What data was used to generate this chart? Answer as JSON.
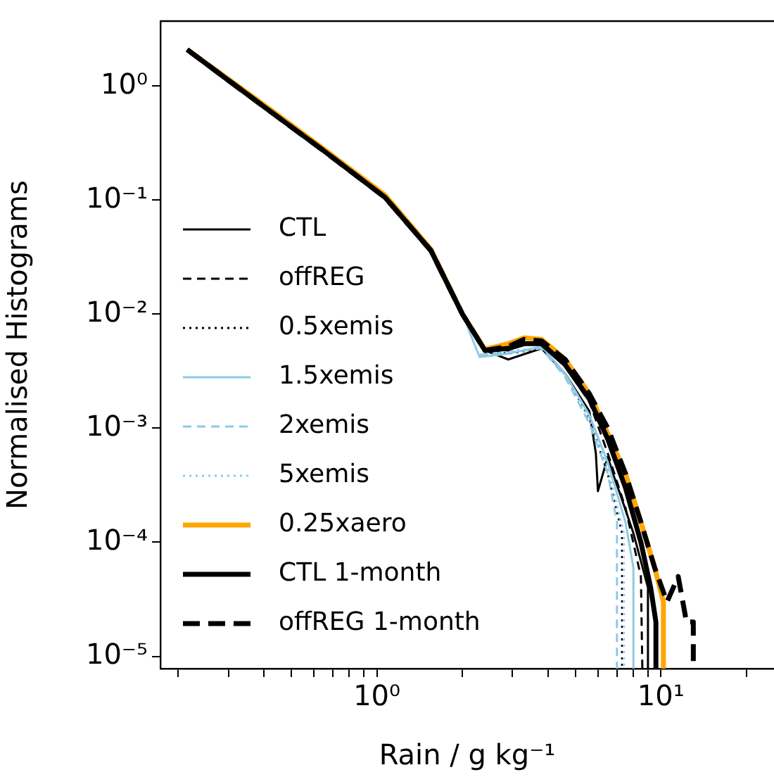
{
  "chart_data": {
    "type": "line",
    "xlabel": "Rain / g kg⁻¹",
    "ylabel": "Normalised Histograms",
    "log": "xy",
    "grid": false,
    "legend": "bottom left",
    "marker": "none",
    "xlim": [
      0.173,
      25
    ],
    "ylim": [
      7.8e-06,
      3.7
    ],
    "xticks": [
      {
        "value": 0.2,
        "label": null
      },
      {
        "value": 0.3,
        "label": null
      },
      {
        "value": 0.4,
        "label": null
      },
      {
        "value": 0.5,
        "label": null
      },
      {
        "value": 0.6,
        "label": null
      },
      {
        "value": 0.7,
        "label": null
      },
      {
        "value": 0.8,
        "label": null
      },
      {
        "value": 0.9,
        "label": null
      },
      {
        "value": 1,
        "label": "10⁰"
      },
      {
        "value": 2,
        "label": null
      },
      {
        "value": 3,
        "label": null
      },
      {
        "value": 4,
        "label": null
      },
      {
        "value": 5,
        "label": null
      },
      {
        "value": 6,
        "label": null
      },
      {
        "value": 7,
        "label": null
      },
      {
        "value": 8,
        "label": null
      },
      {
        "value": 9,
        "label": null
      },
      {
        "value": 10,
        "label": "10¹"
      },
      {
        "value": 20,
        "label": null
      }
    ],
    "yticks": [
      {
        "value": 1e-05,
        "label": "10⁻⁵"
      },
      {
        "value": 0.0001,
        "label": "10⁻⁴"
      },
      {
        "value": 0.001,
        "label": "10⁻³"
      },
      {
        "value": 0.01,
        "label": "10⁻²"
      },
      {
        "value": 0.1,
        "label": "10⁻¹"
      },
      {
        "value": 1,
        "label": "10⁰"
      }
    ],
    "series": [
      {
        "name": "CTL",
        "color": "#000000",
        "line_style": "solid",
        "x": [
          0.215,
          0.3,
          0.45,
          0.65,
          1.07,
          1.55,
          2.0,
          2.4,
          2.9,
          3.8,
          4.6,
          5.6,
          5.9,
          6.0,
          6.5,
          6.8,
          7.2,
          8.0,
          9.0,
          9.0
        ],
        "values": [
          2.08,
          1.12,
          0.53,
          0.27,
          0.105,
          0.036,
          0.01,
          0.0048,
          0.004,
          0.005,
          0.003,
          0.0014,
          0.0006,
          0.00028,
          0.00056,
          0.00039,
          0.00026,
          0.00012,
          4e-05,
          7.8e-06
        ]
      },
      {
        "name": "offREG",
        "color": "#000000",
        "line_style": "dashed",
        "x": [
          0.215,
          0.3,
          0.45,
          0.65,
          1.07,
          1.55,
          2.0,
          2.4,
          2.9,
          3.3,
          3.8,
          4.6,
          5.6,
          6.5,
          7.5,
          8.5,
          8.6
        ],
        "values": [
          2.08,
          1.12,
          0.53,
          0.27,
          0.105,
          0.036,
          0.01,
          0.0048,
          0.0048,
          0.0056,
          0.0055,
          0.0035,
          0.0017,
          0.0006,
          0.0002,
          5e-05,
          7.8e-06
        ]
      },
      {
        "name": "0.5xemis",
        "color": "#000000",
        "line_style": "dotted",
        "x": [
          0.215,
          0.3,
          0.45,
          0.65,
          1.07,
          1.55,
          2.0,
          2.4,
          2.9,
          3.8,
          4.6,
          5.6,
          6.5,
          7.3,
          7.3
        ],
        "values": [
          2.08,
          1.12,
          0.53,
          0.27,
          0.105,
          0.036,
          0.01,
          0.0048,
          0.0045,
          0.005,
          0.003,
          0.0012,
          0.0004,
          0.00012,
          7.8e-06
        ]
      },
      {
        "name": "1.5xemis",
        "color": "#8ecae6",
        "line_style": "solid",
        "x": [
          2.0,
          2.3,
          2.9,
          3.8,
          4.6,
          5.6,
          6.5,
          7.5,
          8.0,
          8.0
        ],
        "values": [
          0.01,
          0.0042,
          0.0045,
          0.0052,
          0.003,
          0.0013,
          0.0005,
          0.00015,
          6e-05,
          7.8e-06
        ]
      },
      {
        "name": "2xemis",
        "color": "#8ecae6",
        "line_style": "dashed",
        "x": [
          2.3,
          2.9,
          3.8,
          4.6,
          5.6,
          6.5,
          7.0,
          7.0
        ],
        "values": [
          0.0044,
          0.0046,
          0.005,
          0.0028,
          0.0011,
          0.0004,
          0.00015,
          7.8e-06
        ]
      },
      {
        "name": "5xemis",
        "color": "#8ecae6",
        "line_style": "dotted",
        "x": [
          2.3,
          2.9,
          3.8,
          4.6,
          5.6,
          6.5,
          7.4,
          7.4
        ],
        "values": [
          0.0043,
          0.0047,
          0.0051,
          0.0029,
          0.0012,
          0.00045,
          0.00012,
          7.8e-06
        ]
      },
      {
        "name": "0.25xaero",
        "color": "#ffa500",
        "line_style": "solid",
        "x": [
          0.215,
          0.3,
          0.45,
          0.65,
          1.07,
          1.55,
          2.0,
          2.4,
          2.9,
          3.3,
          3.8,
          4.6,
          5.6,
          6.5,
          7.5,
          8.5,
          9.5,
          10.2,
          10.2
        ],
        "values": [
          2.08,
          1.15,
          0.55,
          0.28,
          0.11,
          0.037,
          0.01,
          0.0049,
          0.0055,
          0.0062,
          0.006,
          0.004,
          0.002,
          0.0009,
          0.0004,
          0.00015,
          6e-05,
          3e-05,
          7.8e-06
        ]
      },
      {
        "name": "CTL 1-month",
        "color": "#000000",
        "line_style": "solid",
        "x": [
          0.215,
          0.3,
          0.45,
          0.65,
          1.07,
          1.55,
          2.0,
          2.4,
          2.9,
          3.3,
          3.8,
          4.6,
          5.6,
          6.5,
          7.5,
          8.5,
          9.2,
          9.6,
          9.6
        ],
        "values": [
          2.08,
          1.12,
          0.53,
          0.27,
          0.105,
          0.036,
          0.01,
          0.0048,
          0.005,
          0.0055,
          0.0055,
          0.0036,
          0.0018,
          0.0008,
          0.0003,
          0.0001,
          4e-05,
          2e-05,
          7.8e-06
        ]
      },
      {
        "name": "offREG 1-month",
        "color": "#000000",
        "line_style": "dashed",
        "x": [
          0.215,
          0.3,
          0.45,
          0.65,
          1.07,
          1.55,
          2.0,
          2.4,
          2.9,
          3.3,
          3.8,
          4.6,
          5.6,
          6.5,
          7.5,
          8.5,
          9.5,
          10.5,
          11.5,
          12.3,
          13,
          13
        ],
        "values": [
          2.08,
          1.12,
          0.53,
          0.27,
          0.105,
          0.036,
          0.01,
          0.0048,
          0.0052,
          0.006,
          0.0058,
          0.004,
          0.002,
          0.001,
          0.0004,
          0.00015,
          6e-05,
          3e-05,
          5e-05,
          2e-05,
          2e-05,
          7.8e-06
        ]
      }
    ]
  }
}
